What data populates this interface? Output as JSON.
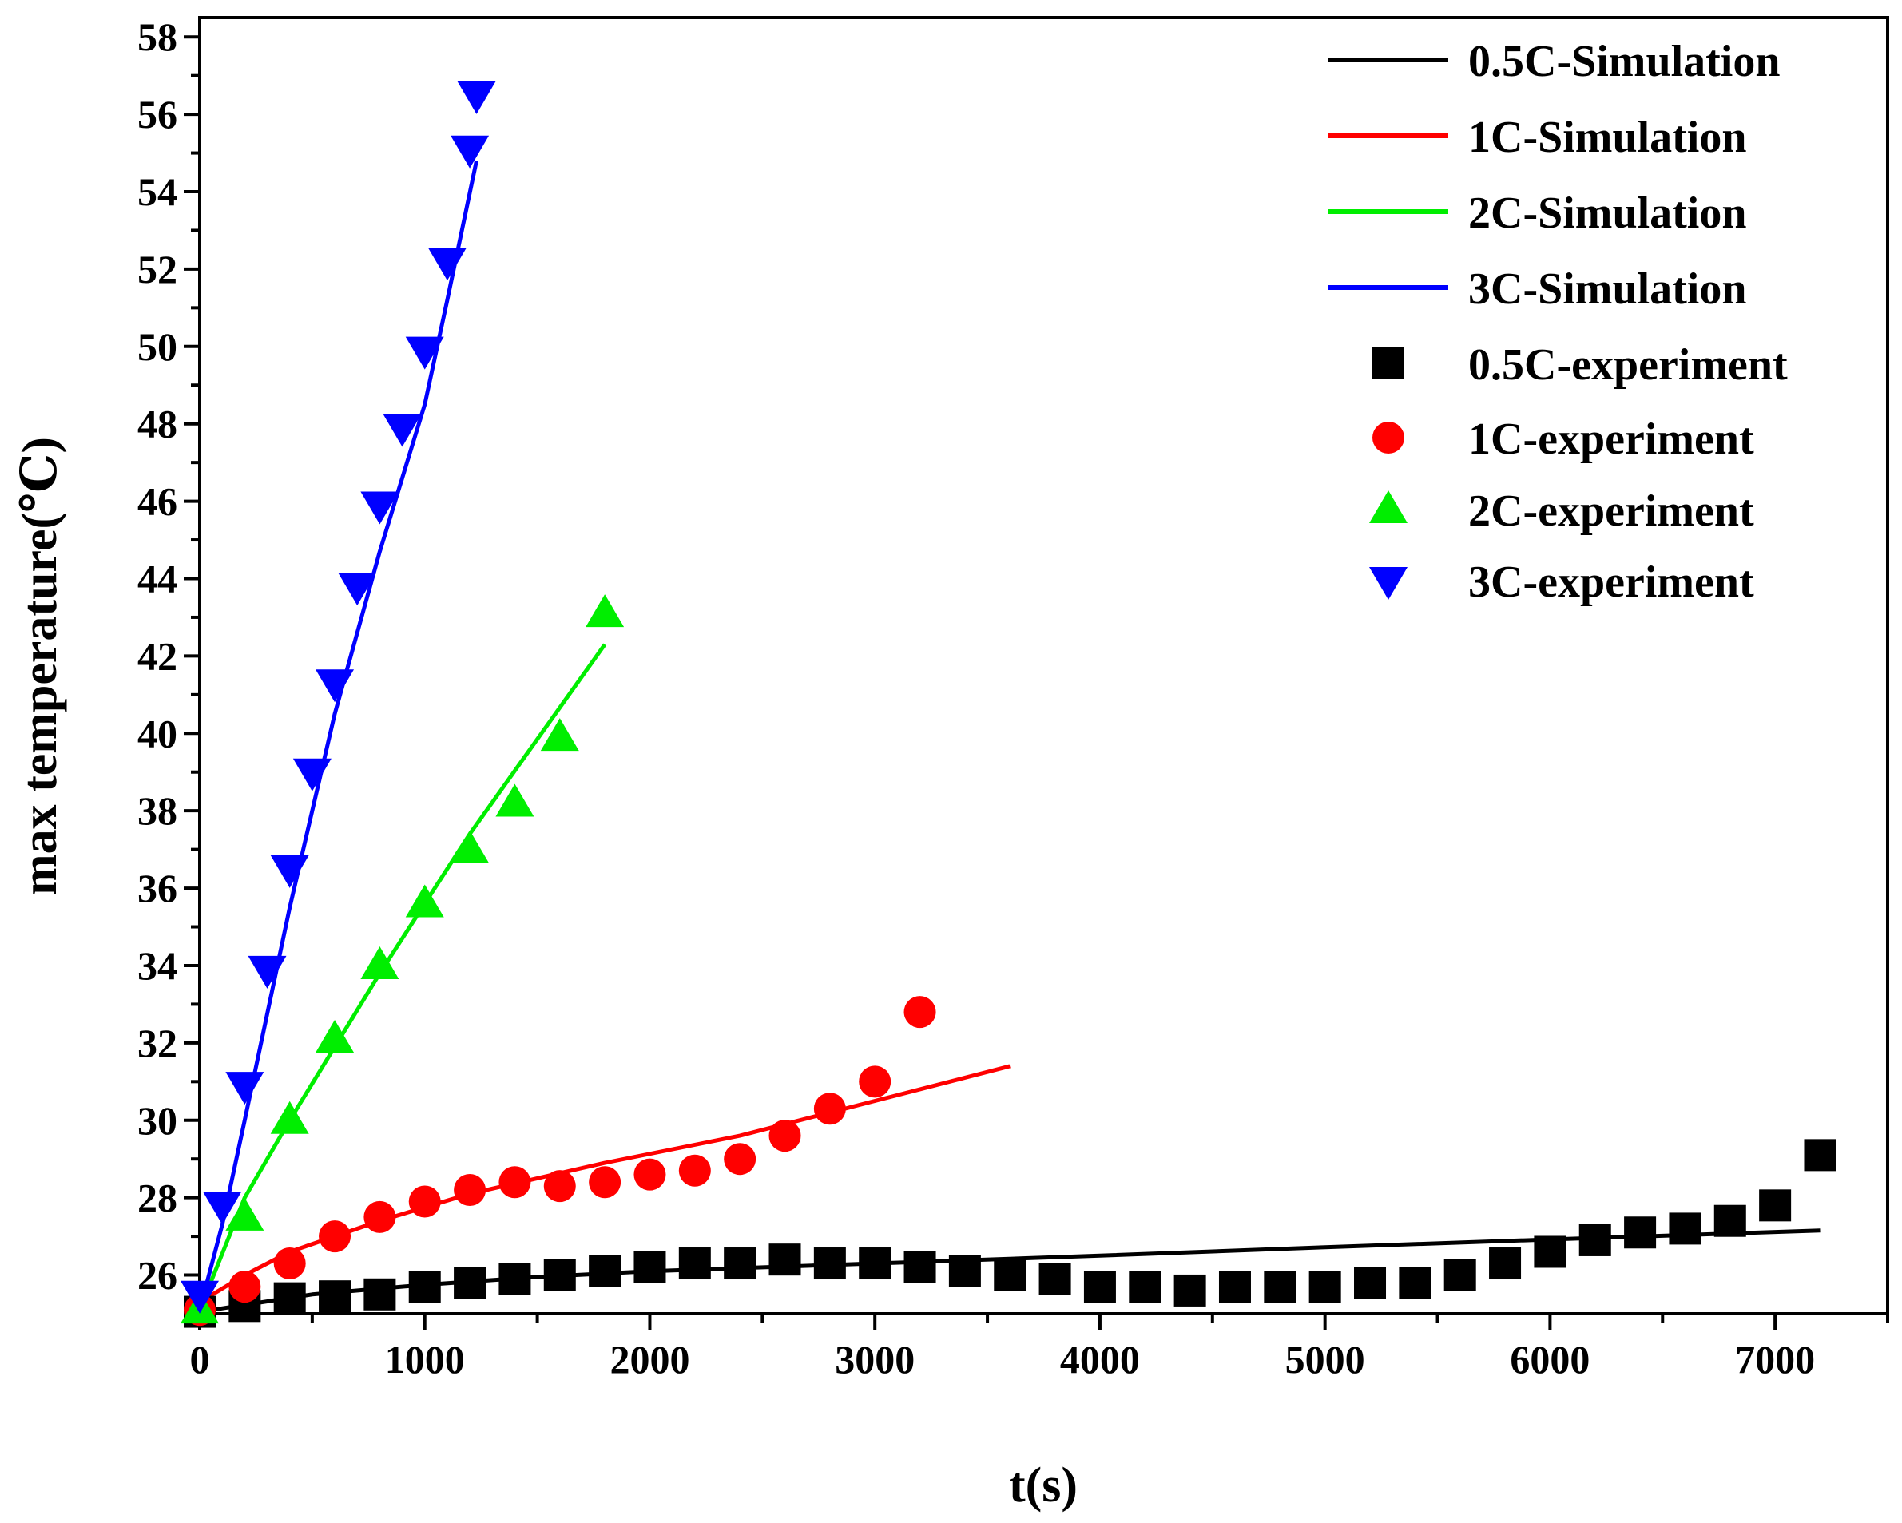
{
  "chart_data": {
    "type": "scatter",
    "title": "",
    "xlabel": "t(s)",
    "ylabel": "max temperature(℃)",
    "xlim": [
      0,
      7500
    ],
    "ylim": [
      25,
      58.5
    ],
    "x_ticks": [
      0,
      1000,
      2000,
      3000,
      4000,
      5000,
      6000,
      7000
    ],
    "y_ticks": [
      26,
      28,
      30,
      32,
      34,
      36,
      38,
      40,
      42,
      44,
      46,
      48,
      50,
      52,
      54,
      56,
      58
    ],
    "grid": false,
    "legend_position": "top-right",
    "series": [
      {
        "name": "0.5C-Simulation",
        "kind": "line",
        "color": "#000000",
        "points": [
          [
            0,
            25.05
          ],
          [
            500,
            25.5
          ],
          [
            1000,
            25.75
          ],
          [
            1500,
            25.95
          ],
          [
            2000,
            26.1
          ],
          [
            3000,
            26.3
          ],
          [
            4000,
            26.5
          ],
          [
            5000,
            26.72
          ],
          [
            6000,
            26.92
          ],
          [
            7200,
            27.15
          ]
        ]
      },
      {
        "name": "1C-Simulation",
        "kind": "line",
        "color": "#ff0000",
        "points": [
          [
            0,
            25.3
          ],
          [
            200,
            26.0
          ],
          [
            400,
            26.6
          ],
          [
            800,
            27.4
          ],
          [
            1200,
            28.1
          ],
          [
            1800,
            28.9
          ],
          [
            2400,
            29.6
          ],
          [
            3000,
            30.5
          ],
          [
            3600,
            31.4
          ]
        ]
      },
      {
        "name": "2C-Simulation",
        "kind": "line",
        "color": "#00ee00",
        "points": [
          [
            0,
            25.1
          ],
          [
            200,
            28.0
          ],
          [
            400,
            30.0
          ],
          [
            800,
            33.8
          ],
          [
            1200,
            37.4
          ],
          [
            1800,
            42.3
          ]
        ]
      },
      {
        "name": "3C-Simulation",
        "kind": "line",
        "color": "#0000ff",
        "points": [
          [
            0,
            25.1
          ],
          [
            100,
            27.3
          ],
          [
            200,
            30.0
          ],
          [
            400,
            35.5
          ],
          [
            600,
            40.5
          ],
          [
            800,
            44.7
          ],
          [
            1000,
            48.5
          ],
          [
            1100,
            51.2
          ],
          [
            1230,
            54.8
          ]
        ]
      },
      {
        "name": "0.5C-experiment",
        "kind": "marker",
        "marker": "square",
        "color": "#000000",
        "points": [
          [
            0,
            25.05
          ],
          [
            200,
            25.2
          ],
          [
            400,
            25.4
          ],
          [
            600,
            25.45
          ],
          [
            800,
            25.5
          ],
          [
            1000,
            25.7
          ],
          [
            1200,
            25.8
          ],
          [
            1400,
            25.9
          ],
          [
            1600,
            26.0
          ],
          [
            1800,
            26.1
          ],
          [
            2000,
            26.2
          ],
          [
            2200,
            26.3
          ],
          [
            2400,
            26.3
          ],
          [
            2600,
            26.4
          ],
          [
            2800,
            26.3
          ],
          [
            3000,
            26.3
          ],
          [
            3200,
            26.2
          ],
          [
            3400,
            26.1
          ],
          [
            3600,
            26.0
          ],
          [
            3800,
            25.9
          ],
          [
            4000,
            25.7
          ],
          [
            4200,
            25.7
          ],
          [
            4400,
            25.6
          ],
          [
            4600,
            25.7
          ],
          [
            4800,
            25.7
          ],
          [
            5000,
            25.7
          ],
          [
            5200,
            25.8
          ],
          [
            5400,
            25.8
          ],
          [
            5600,
            26.0
          ],
          [
            5800,
            26.3
          ],
          [
            6000,
            26.6
          ],
          [
            6200,
            26.9
          ],
          [
            6400,
            27.1
          ],
          [
            6600,
            27.2
          ],
          [
            6800,
            27.4
          ],
          [
            7000,
            27.8
          ],
          [
            7200,
            29.1
          ]
        ]
      },
      {
        "name": "1C-experiment",
        "kind": "marker",
        "marker": "circle",
        "color": "#ff0000",
        "points": [
          [
            0,
            25.1
          ],
          [
            200,
            25.7
          ],
          [
            400,
            26.3
          ],
          [
            600,
            27.0
          ],
          [
            800,
            27.5
          ],
          [
            1000,
            27.9
          ],
          [
            1200,
            28.2
          ],
          [
            1400,
            28.4
          ],
          [
            1600,
            28.3
          ],
          [
            1800,
            28.4
          ],
          [
            2000,
            28.6
          ],
          [
            2200,
            28.7
          ],
          [
            2400,
            29.0
          ],
          [
            2600,
            29.6
          ],
          [
            2800,
            30.3
          ],
          [
            3000,
            31.0
          ],
          [
            3200,
            32.8
          ]
        ]
      },
      {
        "name": "2C-experiment",
        "kind": "marker",
        "marker": "triangle-up",
        "color": "#00ee00",
        "points": [
          [
            0,
            25.1
          ],
          [
            200,
            27.5
          ],
          [
            400,
            30.0
          ],
          [
            600,
            32.1
          ],
          [
            800,
            34.0
          ],
          [
            1000,
            35.6
          ],
          [
            1200,
            37.0
          ],
          [
            1400,
            38.2
          ],
          [
            1600,
            39.9
          ],
          [
            1800,
            43.1
          ]
        ]
      },
      {
        "name": "3C-experiment",
        "kind": "marker",
        "marker": "triangle-down",
        "color": "#0000ff",
        "points": [
          [
            0,
            25.5
          ],
          [
            100,
            27.8
          ],
          [
            200,
            30.9
          ],
          [
            300,
            33.9
          ],
          [
            400,
            36.5
          ],
          [
            500,
            39.0
          ],
          [
            600,
            41.3
          ],
          [
            700,
            43.8
          ],
          [
            800,
            45.9
          ],
          [
            900,
            47.9
          ],
          [
            1000,
            49.9
          ],
          [
            1100,
            52.2
          ],
          [
            1200,
            55.1
          ],
          [
            1230,
            56.5
          ]
        ]
      }
    ]
  }
}
